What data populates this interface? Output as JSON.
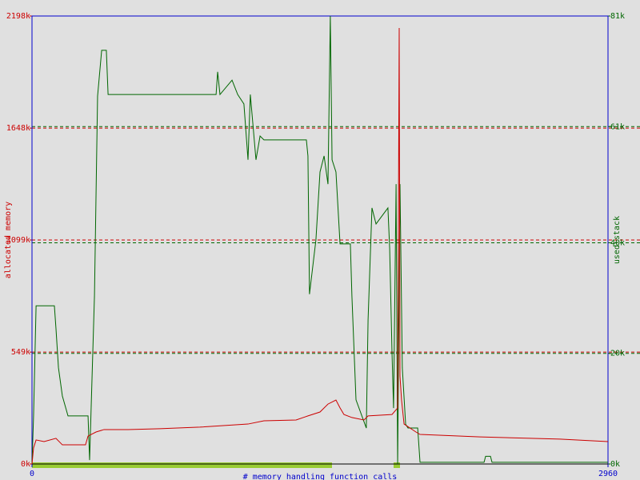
{
  "chart_data": {
    "type": "line",
    "xlabel": "# memory handling function calls",
    "ylabel": "allocated memory",
    "y2label": "used stack",
    "xlim": [
      0,
      2960
    ],
    "xticks": [
      0,
      2960
    ],
    "ylim": [
      0,
      2198
    ],
    "yticks": [
      {
        "value": 0,
        "label": "0k"
      },
      {
        "value": 549,
        "label": "549k"
      },
      {
        "value": 1099,
        "label": "1099k"
      },
      {
        "value": 1648,
        "label": "1648k"
      },
      {
        "value": 2198,
        "label": "2198k"
      }
    ],
    "y2lim": [
      0,
      81
    ],
    "y2ticks": [
      {
        "value": 0,
        "label": "0k"
      },
      {
        "value": 20,
        "label": "20k"
      },
      {
        "value": 40,
        "label": "40k"
      },
      {
        "value": 61,
        "label": "61k"
      },
      {
        "value": 81,
        "label": "81k"
      }
    ],
    "grid": true,
    "series": [
      {
        "name": "allocated memory",
        "color": "#cc0000",
        "x": [
          0,
          8,
          21,
          62,
          123,
          156,
          275,
          288,
          329,
          370,
          493,
          658,
          863,
          1110,
          1192,
          1357,
          1418,
          1480,
          1521,
          1562,
          1583,
          1603,
          1644,
          1706,
          1727,
          1850,
          1879,
          1887,
          1891,
          1899,
          1912,
          1973,
          1994,
          2302,
          2713,
          2960
        ],
        "values": [
          0,
          79,
          118,
          110,
          126,
          94,
          94,
          137,
          157,
          169,
          169,
          173,
          181,
          196,
          212,
          216,
          236,
          255,
          294,
          314,
          275,
          243,
          228,
          216,
          236,
          243,
          275,
          2139,
          432,
          314,
          196,
          157,
          145,
          133,
          122,
          110
        ]
      },
      {
        "name": "used stack",
        "color": "#006600",
        "axis": "y2",
        "x": [
          0,
          8,
          21,
          115,
          123,
          136,
          156,
          185,
          288,
          296,
          321,
          337,
          358,
          382,
          391,
          946,
          954,
          966,
          1028,
          1057,
          1089,
          1110,
          1122,
          1151,
          1172,
          1192,
          1410,
          1418,
          1426,
          1459,
          1480,
          1501,
          1521,
          1533,
          1542,
          1562,
          1583,
          1636,
          1644,
          1665,
          1718,
          1727,
          1747,
          1768,
          1829,
          1838,
          1850,
          1858,
          1871,
          1879,
          1891,
          1903,
          1920,
          1932,
          1982,
          1994,
          2323,
          2331,
          2356,
          2364,
          2960
        ],
        "values": [
          0,
          8.7,
          28.6,
          28.6,
          24.6,
          17.4,
          12.3,
          8.7,
          8.7,
          0.7,
          30.4,
          66.5,
          74.8,
          74.8,
          66.8,
          66.8,
          70.9,
          66.8,
          69.4,
          66.8,
          65.1,
          55.0,
          66.8,
          55.0,
          59.3,
          58.6,
          58.6,
          55.7,
          30.7,
          40.5,
          52.8,
          55.7,
          50.6,
          81.0,
          55.0,
          52.8,
          39.8,
          39.8,
          30.4,
          11.6,
          6.5,
          26.0,
          46.3,
          43.4,
          46.3,
          39.0,
          20.2,
          10.1,
          50.6,
          0,
          50.6,
          17.4,
          7.2,
          6.5,
          6.5,
          0.3,
          0.3,
          1.4,
          1.4,
          0.3,
          0.3
        ]
      }
    ]
  }
}
